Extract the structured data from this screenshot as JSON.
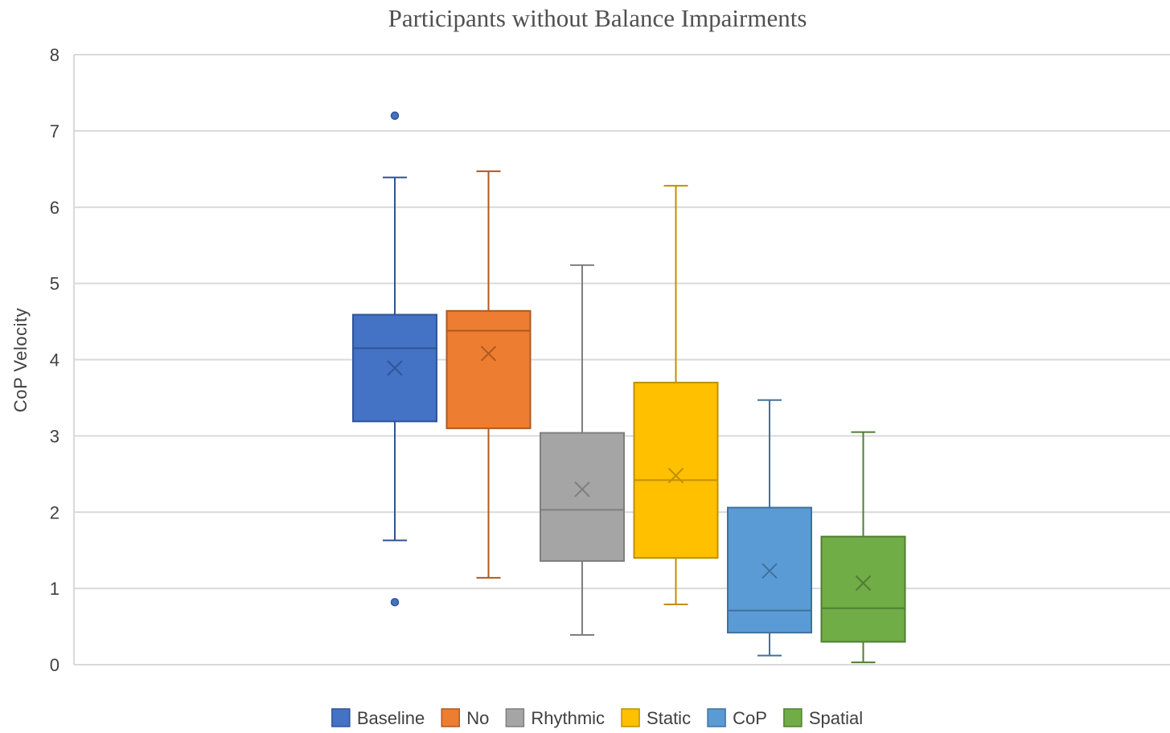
{
  "chart_data": {
    "type": "boxplot",
    "title": "Participants without Balance Impairments",
    "xlabel": "",
    "ylabel": "CoP  Velocity",
    "ylim": [
      0,
      8
    ],
    "yticks": [
      0,
      1,
      2,
      3,
      4,
      5,
      6,
      7,
      8
    ],
    "grid": true,
    "legend_position": "bottom",
    "series": [
      {
        "name": "Baseline",
        "color": "#4472C4",
        "stroke": "#2F5597",
        "whisker_low": 1.63,
        "q1": 3.19,
        "median": 4.15,
        "q3": 4.59,
        "whisker_high": 6.39,
        "mean": 3.89,
        "outliers": [
          7.2,
          0.82
        ]
      },
      {
        "name": "No",
        "color": "#ED7D31",
        "stroke": "#AE5A21",
        "whisker_low": 1.14,
        "q1": 3.1,
        "median": 4.38,
        "q3": 4.64,
        "whisker_high": 6.47,
        "mean": 4.08,
        "outliers": []
      },
      {
        "name": "Rhythmic",
        "color": "#A5A5A5",
        "stroke": "#7F7F7F",
        "whisker_low": 0.39,
        "q1": 1.36,
        "median": 2.03,
        "q3": 3.04,
        "whisker_high": 5.24,
        "mean": 2.3,
        "outliers": []
      },
      {
        "name": "Static",
        "color": "#FFC000",
        "stroke": "#BF9000",
        "whisker_low": 0.79,
        "q1": 1.4,
        "median": 2.42,
        "q3": 3.7,
        "whisker_high": 6.28,
        "mean": 2.48,
        "outliers": []
      },
      {
        "name": "CoP",
        "color": "#5B9BD5",
        "stroke": "#41719C",
        "whisker_low": 0.12,
        "q1": 0.42,
        "median": 0.71,
        "q3": 2.06,
        "whisker_high": 3.47,
        "mean": 1.23,
        "outliers": []
      },
      {
        "name": "Spatial",
        "color": "#70AD47",
        "stroke": "#507E32",
        "whisker_low": 0.03,
        "q1": 0.3,
        "median": 0.74,
        "q3": 1.68,
        "whisker_high": 3.05,
        "mean": 1.07,
        "outliers": []
      }
    ]
  }
}
